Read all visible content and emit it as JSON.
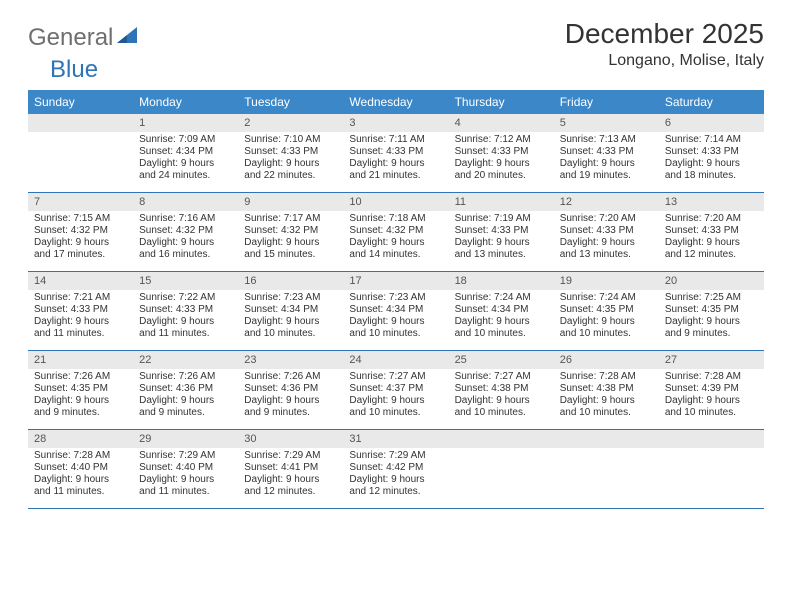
{
  "logo": {
    "word1": "General",
    "word2": "Blue"
  },
  "title": "December 2025",
  "location": "Longano, Molise, Italy",
  "colors": {
    "header_bg": "#3b87c8",
    "header_text": "#ffffff",
    "daynum_bg": "#e9e9e9",
    "cell_border": "#2f74b5",
    "logo_gray": "#6f6f6f",
    "logo_blue": "#2f74b5",
    "text": "#333333"
  },
  "day_headers": [
    "Sunday",
    "Monday",
    "Tuesday",
    "Wednesday",
    "Thursday",
    "Friday",
    "Saturday"
  ],
  "weeks": [
    [
      {
        "n": "",
        "lines": []
      },
      {
        "n": "1",
        "lines": [
          "Sunrise: 7:09 AM",
          "Sunset: 4:34 PM",
          "Daylight: 9 hours",
          "and 24 minutes."
        ]
      },
      {
        "n": "2",
        "lines": [
          "Sunrise: 7:10 AM",
          "Sunset: 4:33 PM",
          "Daylight: 9 hours",
          "and 22 minutes."
        ]
      },
      {
        "n": "3",
        "lines": [
          "Sunrise: 7:11 AM",
          "Sunset: 4:33 PM",
          "Daylight: 9 hours",
          "and 21 minutes."
        ]
      },
      {
        "n": "4",
        "lines": [
          "Sunrise: 7:12 AM",
          "Sunset: 4:33 PM",
          "Daylight: 9 hours",
          "and 20 minutes."
        ]
      },
      {
        "n": "5",
        "lines": [
          "Sunrise: 7:13 AM",
          "Sunset: 4:33 PM",
          "Daylight: 9 hours",
          "and 19 minutes."
        ]
      },
      {
        "n": "6",
        "lines": [
          "Sunrise: 7:14 AM",
          "Sunset: 4:33 PM",
          "Daylight: 9 hours",
          "and 18 minutes."
        ]
      }
    ],
    [
      {
        "n": "7",
        "lines": [
          "Sunrise: 7:15 AM",
          "Sunset: 4:32 PM",
          "Daylight: 9 hours",
          "and 17 minutes."
        ]
      },
      {
        "n": "8",
        "lines": [
          "Sunrise: 7:16 AM",
          "Sunset: 4:32 PM",
          "Daylight: 9 hours",
          "and 16 minutes."
        ]
      },
      {
        "n": "9",
        "lines": [
          "Sunrise: 7:17 AM",
          "Sunset: 4:32 PM",
          "Daylight: 9 hours",
          "and 15 minutes."
        ]
      },
      {
        "n": "10",
        "lines": [
          "Sunrise: 7:18 AM",
          "Sunset: 4:32 PM",
          "Daylight: 9 hours",
          "and 14 minutes."
        ]
      },
      {
        "n": "11",
        "lines": [
          "Sunrise: 7:19 AM",
          "Sunset: 4:33 PM",
          "Daylight: 9 hours",
          "and 13 minutes."
        ]
      },
      {
        "n": "12",
        "lines": [
          "Sunrise: 7:20 AM",
          "Sunset: 4:33 PM",
          "Daylight: 9 hours",
          "and 13 minutes."
        ]
      },
      {
        "n": "13",
        "lines": [
          "Sunrise: 7:20 AM",
          "Sunset: 4:33 PM",
          "Daylight: 9 hours",
          "and 12 minutes."
        ]
      }
    ],
    [
      {
        "n": "14",
        "lines": [
          "Sunrise: 7:21 AM",
          "Sunset: 4:33 PM",
          "Daylight: 9 hours",
          "and 11 minutes."
        ]
      },
      {
        "n": "15",
        "lines": [
          "Sunrise: 7:22 AM",
          "Sunset: 4:33 PM",
          "Daylight: 9 hours",
          "and 11 minutes."
        ]
      },
      {
        "n": "16",
        "lines": [
          "Sunrise: 7:23 AM",
          "Sunset: 4:34 PM",
          "Daylight: 9 hours",
          "and 10 minutes."
        ]
      },
      {
        "n": "17",
        "lines": [
          "Sunrise: 7:23 AM",
          "Sunset: 4:34 PM",
          "Daylight: 9 hours",
          "and 10 minutes."
        ]
      },
      {
        "n": "18",
        "lines": [
          "Sunrise: 7:24 AM",
          "Sunset: 4:34 PM",
          "Daylight: 9 hours",
          "and 10 minutes."
        ]
      },
      {
        "n": "19",
        "lines": [
          "Sunrise: 7:24 AM",
          "Sunset: 4:35 PM",
          "Daylight: 9 hours",
          "and 10 minutes."
        ]
      },
      {
        "n": "20",
        "lines": [
          "Sunrise: 7:25 AM",
          "Sunset: 4:35 PM",
          "Daylight: 9 hours",
          "and 9 minutes."
        ]
      }
    ],
    [
      {
        "n": "21",
        "lines": [
          "Sunrise: 7:26 AM",
          "Sunset: 4:35 PM",
          "Daylight: 9 hours",
          "and 9 minutes."
        ]
      },
      {
        "n": "22",
        "lines": [
          "Sunrise: 7:26 AM",
          "Sunset: 4:36 PM",
          "Daylight: 9 hours",
          "and 9 minutes."
        ]
      },
      {
        "n": "23",
        "lines": [
          "Sunrise: 7:26 AM",
          "Sunset: 4:36 PM",
          "Daylight: 9 hours",
          "and 9 minutes."
        ]
      },
      {
        "n": "24",
        "lines": [
          "Sunrise: 7:27 AM",
          "Sunset: 4:37 PM",
          "Daylight: 9 hours",
          "and 10 minutes."
        ]
      },
      {
        "n": "25",
        "lines": [
          "Sunrise: 7:27 AM",
          "Sunset: 4:38 PM",
          "Daylight: 9 hours",
          "and 10 minutes."
        ]
      },
      {
        "n": "26",
        "lines": [
          "Sunrise: 7:28 AM",
          "Sunset: 4:38 PM",
          "Daylight: 9 hours",
          "and 10 minutes."
        ]
      },
      {
        "n": "27",
        "lines": [
          "Sunrise: 7:28 AM",
          "Sunset: 4:39 PM",
          "Daylight: 9 hours",
          "and 10 minutes."
        ]
      }
    ],
    [
      {
        "n": "28",
        "lines": [
          "Sunrise: 7:28 AM",
          "Sunset: 4:40 PM",
          "Daylight: 9 hours",
          "and 11 minutes."
        ]
      },
      {
        "n": "29",
        "lines": [
          "Sunrise: 7:29 AM",
          "Sunset: 4:40 PM",
          "Daylight: 9 hours",
          "and 11 minutes."
        ]
      },
      {
        "n": "30",
        "lines": [
          "Sunrise: 7:29 AM",
          "Sunset: 4:41 PM",
          "Daylight: 9 hours",
          "and 12 minutes."
        ]
      },
      {
        "n": "31",
        "lines": [
          "Sunrise: 7:29 AM",
          "Sunset: 4:42 PM",
          "Daylight: 9 hours",
          "and 12 minutes."
        ]
      },
      {
        "n": "",
        "lines": []
      },
      {
        "n": "",
        "lines": []
      },
      {
        "n": "",
        "lines": []
      }
    ]
  ]
}
